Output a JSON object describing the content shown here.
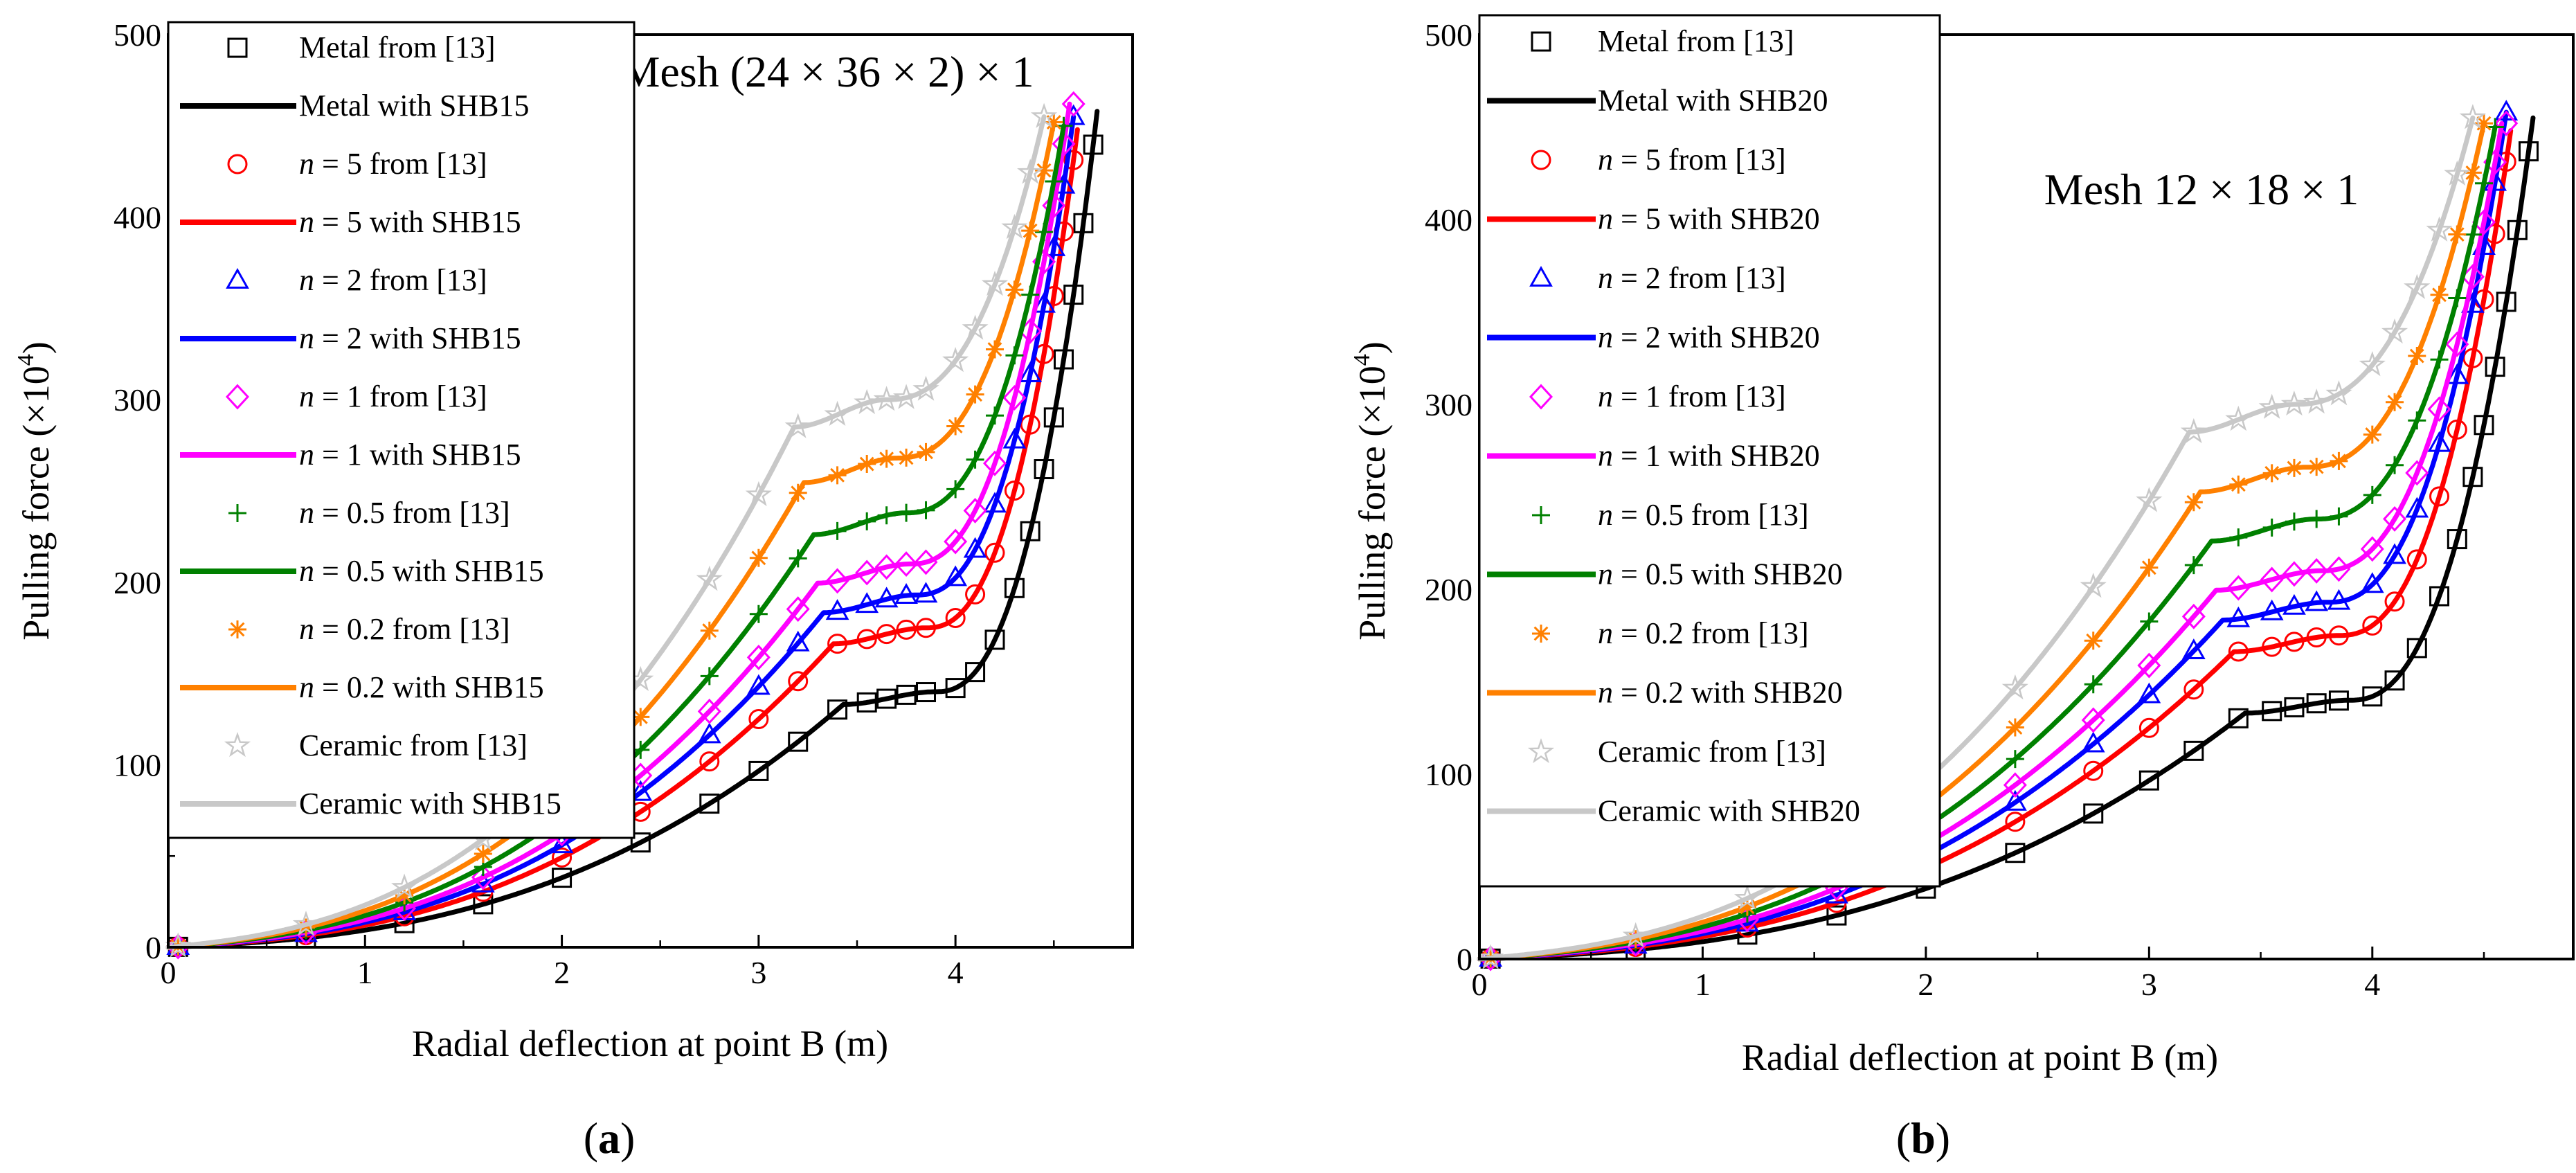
{
  "figure": {
    "panel_labels": [
      "a",
      "b"
    ]
  },
  "chart_data": [
    {
      "type": "line",
      "panel": "a",
      "title": "Mesh (24 × 36 × 2) × 1",
      "xlabel": "Radial deflection at point B (m)",
      "ylabel_main": "Pulling force (×10",
      "ylabel_exp": "4",
      "ylabel_close": ")",
      "xlim": [
        0,
        4.9
      ],
      "ylim": [
        0,
        500
      ],
      "xticks": [
        0,
        1,
        2,
        3,
        4
      ],
      "yticks": [
        0,
        100,
        200,
        300,
        400,
        500
      ],
      "legend_location": "upper-left",
      "series": [
        {
          "name": "Metal",
          "color": "#000000",
          "marker": "square",
          "mfill": "none",
          "pf": 140,
          "xp": 3.85,
          "xmax": 4.72,
          "xmarkmax": 4.75,
          "fmax": 458,
          "ref_label": "Metal from [13]",
          "fem_label": "Metal with SHB15"
        },
        {
          "name": "n=5",
          "color": "#ff0000",
          "marker": "circle",
          "mfill": "none",
          "pf": 175,
          "xp": 3.8,
          "xmax": 4.62,
          "xmarkmax": 4.64,
          "fmax": 448,
          "ref_label": "n = 5 from [13]",
          "fem_label": "n = 5 with SHB15",
          "prefix": "n",
          "rest": " = 5"
        },
        {
          "name": "n=2",
          "color": "#0000ff",
          "marker": "triangle",
          "mfill": "none",
          "pf": 193,
          "xp": 3.75,
          "xmax": 4.6,
          "xmarkmax": 4.62,
          "fmax": 455,
          "ref_label": "n = 2 from [13]",
          "fem_label": "n = 2 with SHB15",
          "prefix": "n",
          "rest": " = 2"
        },
        {
          "name": "n=1",
          "color": "#ff00ff",
          "marker": "diamond",
          "mfill": "none",
          "pf": 210,
          "xp": 3.72,
          "xmax": 4.58,
          "xmarkmax": 4.6,
          "fmax": 462,
          "ref_label": "n = 1 from [13]",
          "fem_label": "n = 1 with SHB15",
          "prefix": "n",
          "rest": " = 1"
        },
        {
          "name": "n=0.5",
          "color": "#008000",
          "marker": "plus",
          "mfill": "none",
          "pf": 238,
          "xp": 3.7,
          "xmax": 4.55,
          "xmarkmax": 4.57,
          "fmax": 450,
          "ref_label": "n = 0.5 from [13]",
          "fem_label": "n = 0.5 with SHB15",
          "prefix": "n",
          "rest": " = 0.5"
        },
        {
          "name": "n=0.2",
          "color": "#ff8000",
          "marker": "asterisk",
          "mfill": "none",
          "pf": 268,
          "xp": 3.65,
          "xmax": 4.5,
          "xmarkmax": 4.52,
          "fmax": 452,
          "ref_label": "n = 0.2 from [13]",
          "fem_label": "n = 0.2 with SHB15",
          "prefix": "n",
          "rest": " = 0.2"
        },
        {
          "name": "Ceramic",
          "color": "#c8c8c8",
          "marker": "star",
          "mfill": "none",
          "pf": 300,
          "xp": 3.6,
          "xmax": 4.45,
          "xmarkmax": 4.47,
          "fmax": 455,
          "ref_label": "Ceramic from [13]",
          "fem_label": "Ceramic with SHB15"
        }
      ]
    },
    {
      "type": "line",
      "panel": "b",
      "title": "Mesh 12 × 18 × 1",
      "xlabel": "Radial deflection at point B (m)",
      "ylabel_main": "Pulling force (×10",
      "ylabel_exp": "4",
      "ylabel_close": ")",
      "xlim": [
        0,
        4.9
      ],
      "ylim": [
        0,
        500
      ],
      "xticks": [
        0,
        1,
        2,
        3,
        4
      ],
      "yticks": [
        0,
        100,
        200,
        300,
        400,
        500
      ],
      "legend_location": "upper-left",
      "series": [
        {
          "name": "Metal",
          "color": "#000000",
          "marker": "square",
          "mfill": "none",
          "pf": 140,
          "xp": 3.85,
          "xmax": 4.72,
          "xmarkmax": 4.75,
          "fmax": 455,
          "ref_label": "Metal from [13]",
          "fem_label": "Metal with SHB20"
        },
        {
          "name": "n=5",
          "color": "#ff0000",
          "marker": "circle",
          "mfill": "none",
          "pf": 175,
          "xp": 3.8,
          "xmax": 4.62,
          "xmarkmax": 4.64,
          "fmax": 448,
          "ref_label": "n = 5 from [13]",
          "fem_label": "n = 5 with SHB20",
          "prefix": "n",
          "rest": " = 5"
        },
        {
          "name": "n=2",
          "color": "#0000ff",
          "marker": "triangle",
          "mfill": "none",
          "pf": 193,
          "xp": 3.75,
          "xmax": 4.6,
          "xmarkmax": 4.62,
          "fmax": 458,
          "ref_label": "n = 2 from [13]",
          "fem_label": "n = 2 with SHB20",
          "prefix": "n",
          "rest": " = 2"
        },
        {
          "name": "n=1",
          "color": "#ff00ff",
          "marker": "diamond",
          "mfill": "none",
          "pf": 210,
          "xp": 3.72,
          "xmax": 4.58,
          "xmarkmax": 4.6,
          "fmax": 452,
          "ref_label": "n = 1 from [13]",
          "fem_label": "n = 1 with SHB20",
          "prefix": "n",
          "rest": " = 1"
        },
        {
          "name": "n=0.5",
          "color": "#008000",
          "marker": "plus",
          "mfill": "none",
          "pf": 238,
          "xp": 3.7,
          "xmax": 4.55,
          "xmarkmax": 4.57,
          "fmax": 450,
          "ref_label": "n = 0.5 from [13]",
          "fem_label": "n = 0.5 with SHB20",
          "prefix": "n",
          "rest": " = 0.5"
        },
        {
          "name": "n=0.2",
          "color": "#ff8000",
          "marker": "asterisk",
          "mfill": "none",
          "pf": 266,
          "xp": 3.65,
          "xmax": 4.5,
          "xmarkmax": 4.52,
          "fmax": 452,
          "ref_label": "n = 0.2 from [13]",
          "fem_label": "n = 0.2 with SHB20",
          "prefix": "n",
          "rest": " = 0.2"
        },
        {
          "name": "Ceramic",
          "color": "#c8c8c8",
          "marker": "star",
          "mfill": "none",
          "pf": 300,
          "xp": 3.6,
          "xmax": 4.45,
          "xmarkmax": 4.47,
          "fmax": 455,
          "ref_label": "Ceramic from [13]",
          "fem_label": "Ceramic with SHB20"
        }
      ]
    }
  ]
}
